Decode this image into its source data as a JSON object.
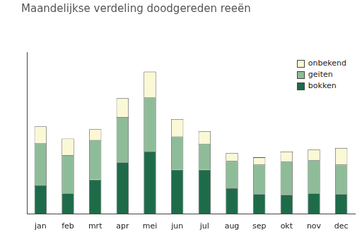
{
  "chart_data": {
    "type": "bar",
    "title": "Maandelijkse verdeling doodgereden reeën",
    "categories": [
      "jan",
      "feb",
      "mrt",
      "apr",
      "mei",
      "jun",
      "jul",
      "aug",
      "sep",
      "okt",
      "nov",
      "dec"
    ],
    "series": [
      {
        "name": "bokken",
        "color": "#1e6b4a",
        "values": [
          40,
          29,
          48,
          72,
          87,
          62,
          62,
          36,
          28,
          27,
          29,
          28
        ]
      },
      {
        "name": "geiten",
        "color": "#8fbc98",
        "values": [
          59,
          53,
          55,
          63,
          75,
          46,
          36,
          38,
          41,
          46,
          46,
          41
        ]
      },
      {
        "name": "onbekend",
        "color": "#fbf8d6",
        "values": [
          23,
          23,
          15,
          26,
          36,
          24,
          17,
          11,
          10,
          14,
          15,
          23
        ]
      }
    ],
    "ylim": [
      0,
      225
    ],
    "stacked": true,
    "grid": false,
    "legend": "upper right",
    "tick_labels": "x"
  }
}
